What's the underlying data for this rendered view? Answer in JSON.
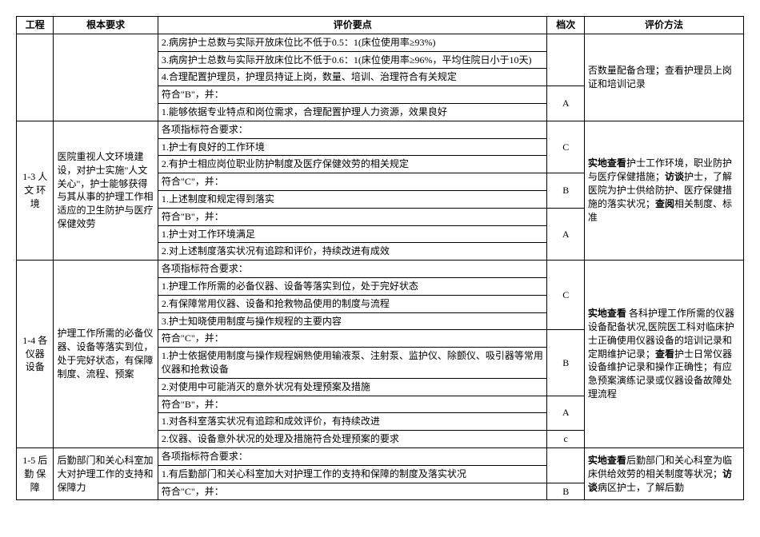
{
  "headers": {
    "col1": "工程",
    "col2": "根本要求",
    "col3": "评价要点",
    "col4": "档次",
    "col5": "评价方法"
  },
  "rows": [
    {
      "c3": "2.病房护士总数与实际开放床位比不低于0.5：1(床位使用率≥93%)"
    },
    {
      "c3": "3.病房护士总数与实际开放床位比不低于0.6：1(床位使用率≥96%，平均住院日小于10天)"
    },
    {
      "c3": "4.合理配置护理员，护理员持证上岗，数量、培训、治理符合有关规定"
    },
    {
      "c3": "符合\"B\"，并：",
      "c4": "A"
    },
    {
      "c3": "1.能够依据专业特点和岗位需求，合理配置护理人力资源，效果良好"
    }
  ],
  "method_top": "否数量配备合理；查看护理员上岗证和培训记录",
  "section_1_3": {
    "proj": "1-3\n人文\n环境",
    "req": "医院重视人文环境建设，对护士实施\"人文关心\"，护士能够获得与其从事的护理工作相适应的卫生防护与医疗保健效劳",
    "method": "实地查看护士工作环境，职业防护与医疗保健措施；访谈护士，了解医院为护士供给防护、医疗保健措施的落实状况；查阅相关制度、标准",
    "rows": [
      {
        "c3": "各项指标符合要求：",
        "c4": "C"
      },
      {
        "c3": "1.护士有良好的工作环境"
      },
      {
        "c3": "2.有护士相应岗位职业防护制度及医疗保健效劳的相关规定"
      },
      {
        "c3": "符合\"C\"，并：",
        "c4": "B"
      },
      {
        "c3": "1.上述制度和规定得到落实"
      },
      {
        "c3": "符合\"B\"，并：",
        "c4": "A"
      },
      {
        "c3": "1.护士对工作环境满足"
      },
      {
        "c3": "2.对上述制度落实状况有追踪和评价，持续改进有成效"
      }
    ]
  },
  "section_1_4": {
    "proj": "1-4 各\n仪器\n设备",
    "req": "护理工作所需的必备仪器、设备等落实到位，处于完好状态，有保障制度、流程、预案",
    "method": "实地查看 各科护理工作所需的仪器设备配备状况,医院医工科对临床护士正确使用仪器设备的培训记录和定期维护记录；查看护士日常仪器设备维护记录和操作正确性；有应急预案演练记录或仪器设备故障处理流程",
    "rows": [
      {
        "c3": "各项指标符合要求：",
        "c4": "C"
      },
      {
        "c3": "1.护理工作所需的必备仪器、设备等落实到位，处于完好状态"
      },
      {
        "c3": "2.有保障常用仪器、设备和抢救物品使用的制度与流程"
      },
      {
        "c3": "3.护士知晓使用制度与操作规程的主要内容"
      },
      {
        "c3": "符合\"C\"，并：",
        "c4": "B"
      },
      {
        "c3": "1.护士依据使用制度与操作规程娴熟使用输液泵、注射泵、监护仪、除颤仪、吸引器等常用仪器和抢救设备"
      },
      {
        "c3": "2.对使用中可能消灭的意外状况有处理预案及措施"
      },
      {
        "c3": "符合\"B\"，并：",
        "c4": "A"
      },
      {
        "c3": "1.对各科室落实状况有追踪和成效评价，有持续改进"
      },
      {
        "c3": "2.仪器、设备意外状况的处理及措施符合处理预案的要求",
        "c4": "c"
      }
    ]
  },
  "section_1_5": {
    "proj": "1-5\n后勤\n保障",
    "req": "后勤部门和关心科室加大对护理工作的支持和保障力",
    "method": "实地查看后勤部门和关心科室为临床供给效劳的相关制度等状况；访谈病区护士，了解后勤",
    "rows": [
      {
        "c3": "各项指标符合要求："
      },
      {
        "c3": "1.有后勤部门和关心科室加大对护理工作的支持和保障的制度及落实状况"
      },
      {
        "c3": "符合\"C\"，并：",
        "c4": "B"
      }
    ]
  },
  "bold_prefix": {
    "b1": "实地查看",
    "b2": "实地查看",
    "b3": "实地查看",
    "qk": "查看",
    "ft": "访谈",
    "cy": "查阅"
  }
}
